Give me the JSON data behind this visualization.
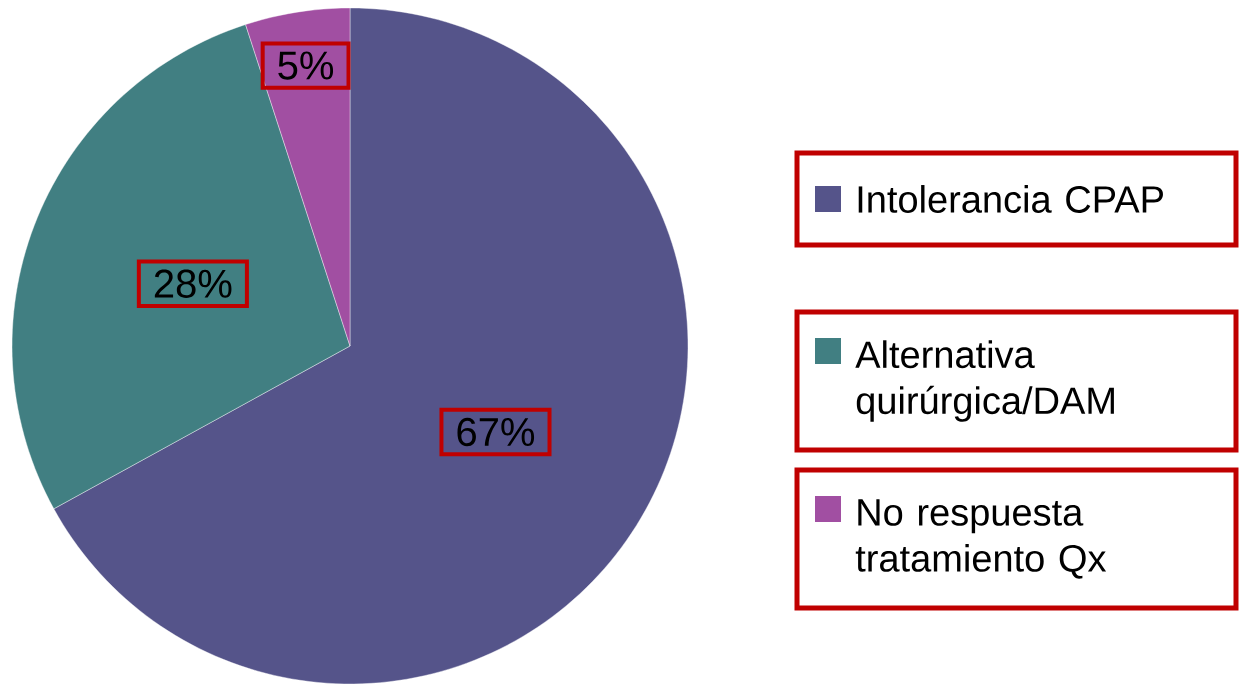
{
  "chart_data": {
    "type": "pie",
    "categories": [
      "Intolerancia CPAP",
      "Alternativa quirúrgica/DAM",
      "No respuesta tratamiento Qx"
    ],
    "values": [
      67,
      28,
      5
    ],
    "colors": [
      "#55548a",
      "#417f82",
      "#a14fa2"
    ],
    "value_labels": [
      "67%",
      "28%",
      "5%"
    ],
    "legend": "right"
  }
}
